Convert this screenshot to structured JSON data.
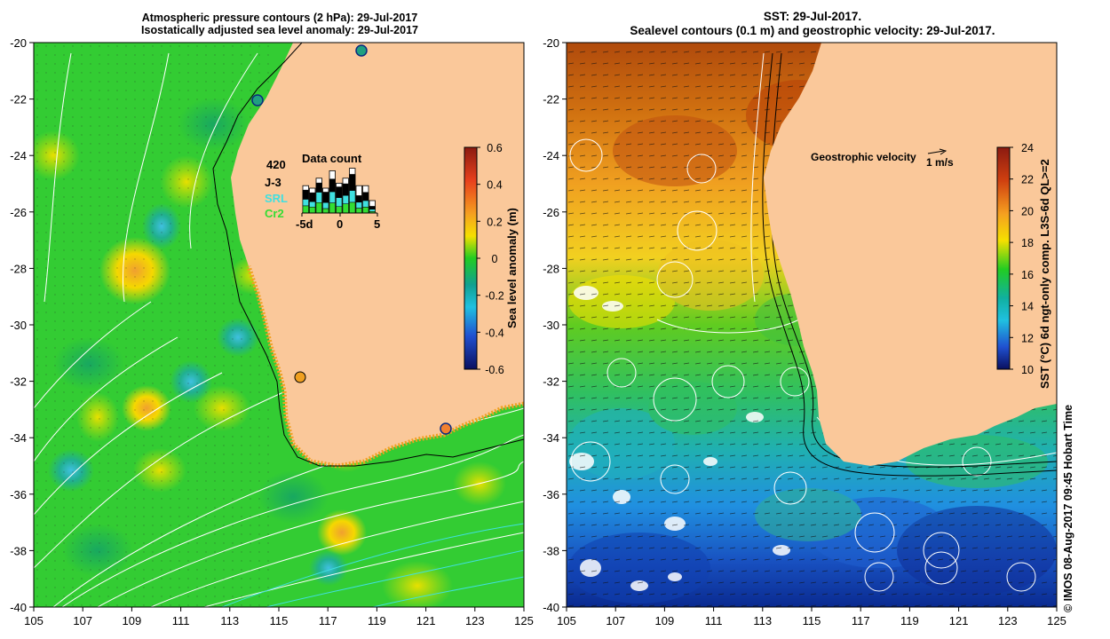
{
  "left_panel": {
    "title_line1": "Atmospheric pressure contours (2 hPa): 29-Jul-2017",
    "title_line2": "Isostatically adjusted sea level anomaly: 29-Jul-2017",
    "x_ticks": [
      "105",
      "107",
      "109",
      "111",
      "113",
      "115",
      "117",
      "119",
      "121",
      "123",
      "125"
    ],
    "y_ticks": [
      "-20",
      "-22",
      "-24",
      "-26",
      "-28",
      "-30",
      "-32",
      "-34",
      "-36",
      "-38",
      "-40"
    ],
    "colorbar": {
      "title": "Sea level anomaly (m)",
      "ticks": [
        "0.6",
        "0.4",
        "0.2",
        "0",
        "-0.2",
        "-0.4",
        "-0.6"
      ]
    },
    "inset": {
      "title": "Data count",
      "max_label": "420",
      "series_labels": [
        "J-3",
        "SRL",
        "Cr2"
      ],
      "series_colors": [
        "#000000",
        "#40e0e0",
        "#33dd33"
      ],
      "x_ticks": [
        "-5d",
        "0",
        "5"
      ]
    }
  },
  "right_panel": {
    "title_line1": "SST: 29-Jul-2017.",
    "title_line2": "Sealevel contours (0.1 m) and geostrophic velocity: 29-Jul-2017.",
    "x_ticks": [
      "105",
      "107",
      "109",
      "111",
      "113",
      "115",
      "117",
      "119",
      "121",
      "123",
      "125"
    ],
    "y_ticks": [
      "-20",
      "-22",
      "-24",
      "-26",
      "-28",
      "-30",
      "-32",
      "-34",
      "-36",
      "-38",
      "-40"
    ],
    "velocity_legend": "Geostrophic velocity",
    "velocity_scale": "1 m/s",
    "colorbar": {
      "title": "SST (°C) 6d ngt-only comp. L3S-6d QL>=2",
      "ticks": [
        "24",
        "22",
        "20",
        "18",
        "16",
        "14",
        "12",
        "10"
      ]
    }
  },
  "credit": "© IMOS 08-Aug-2017 09:45 Hobart Time",
  "colors": {
    "land": "#fac89a",
    "sla_positive": "#f5d000",
    "sla_zero": "#22cc22",
    "sst_warm": "#c05010",
    "sst_cold": "#103080"
  }
}
